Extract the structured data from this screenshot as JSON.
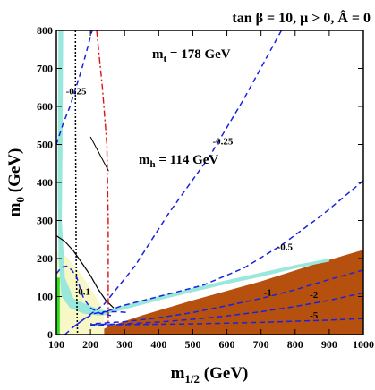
{
  "chart_data": {
    "type": "contour",
    "title": "tan β = 10, μ > 0, Â = 0",
    "xlabel": "m",
    "xlabel_sub": "1/2",
    "xlabel_unit": " (GeV)",
    "ylabel": "m",
    "ylabel_sub": "0",
    "ylabel_unit": " (GeV)",
    "xlim": [
      100,
      1000
    ],
    "ylim": [
      0,
      800
    ],
    "xticks": [
      100,
      200,
      300,
      400,
      500,
      600,
      700,
      800,
      900,
      1000
    ],
    "yticks": [
      0,
      100,
      200,
      300,
      400,
      500,
      600,
      700,
      800
    ],
    "annotations": {
      "mt_text": "m",
      "mt_sub": "t",
      "mt_value": " = 178 GeV",
      "mh_text": "m",
      "mh_sub": "h",
      "mh_value": " = 114 GeV"
    },
    "regions": [
      {
        "name": "stau_lsp",
        "color": "#b5500f",
        "points": [
          [
            210,
            0
          ],
          [
            1000,
            0
          ],
          [
            1000,
            223
          ],
          [
            850,
            183
          ],
          [
            700,
            140
          ],
          [
            500,
            90
          ],
          [
            350,
            50
          ],
          [
            250,
            20
          ],
          [
            210,
            0
          ]
        ]
      },
      {
        "name": "light_yellow",
        "color": "#f7f8c6",
        "points": [
          [
            100,
            0
          ],
          [
            240,
            0
          ],
          [
            240,
            60
          ],
          [
            215,
            100
          ],
          [
            175,
            155
          ],
          [
            130,
            205
          ],
          [
            100,
            220
          ]
        ]
      },
      {
        "name": "green_strip",
        "color": "#2ee01a",
        "points": [
          [
            100,
            0
          ],
          [
            110,
            0
          ],
          [
            110,
            150
          ],
          [
            100,
            150
          ]
        ]
      },
      {
        "name": "cosmology_strip_vertical",
        "color": "#9ae8dc",
        "points": [
          [
            110,
            800
          ],
          [
            120,
            800
          ],
          [
            118,
            500
          ],
          [
            116,
            300
          ],
          [
            125,
            150
          ],
          [
            150,
            95
          ],
          [
            200,
            75
          ],
          [
            230,
            65
          ],
          [
            255,
            62
          ],
          [
            255,
            52
          ],
          [
            225,
            50
          ],
          [
            180,
            55
          ],
          [
            140,
            70
          ],
          [
            115,
            100
          ],
          [
            106,
            200
          ],
          [
            104,
            400
          ],
          [
            106,
            800
          ]
        ]
      },
      {
        "name": "cosmology_strip_diagonal",
        "color": "#9ae8dc",
        "points": [
          [
            240,
            62
          ],
          [
            300,
            77
          ],
          [
            400,
            101
          ],
          [
            500,
            122
          ],
          [
            600,
            143
          ],
          [
            700,
            163
          ],
          [
            800,
            183
          ],
          [
            900,
            200
          ],
          [
            900,
            192
          ],
          [
            800,
            174
          ],
          [
            700,
            152
          ],
          [
            600,
            133
          ],
          [
            500,
            112
          ],
          [
            400,
            90
          ],
          [
            300,
            66
          ],
          [
            240,
            52
          ]
        ]
      }
    ],
    "lines": [
      {
        "name": "chargino_bound",
        "style": "solid-black",
        "points": [
          [
            100,
            260
          ],
          [
            125,
            245
          ],
          [
            150,
            220
          ],
          [
            175,
            188
          ],
          [
            200,
            155
          ],
          [
            222,
            120
          ],
          [
            245,
            90
          ],
          [
            268,
            70
          ]
        ]
      },
      {
        "name": "black_dotted",
        "style": "dotted-black",
        "points": [
          [
            156,
            800
          ],
          [
            156,
            600
          ],
          [
            157,
            400
          ],
          [
            158,
            200
          ],
          [
            162,
            0
          ]
        ]
      },
      {
        "name": "mh_114",
        "style": "dashdot-red",
        "points": [
          [
            218,
            800
          ],
          [
            235,
            650
          ],
          [
            248,
            500
          ],
          [
            252,
            300
          ],
          [
            252,
            100
          ],
          [
            252,
            20
          ]
        ]
      }
    ],
    "contours": [
      {
        "label": "-0.25",
        "label_at": [
          158,
          632
        ],
        "dashed": true,
        "points": [
          [
            100,
            500
          ],
          [
            120,
            555
          ],
          [
            140,
            600
          ],
          [
            175,
            700
          ],
          [
            205,
            800
          ]
        ]
      },
      {
        "label": "-0.25",
        "label_at": [
          588,
          500
        ],
        "dashed": true,
        "points": [
          [
            760,
            800
          ],
          [
            650,
            620
          ],
          [
            550,
            470
          ],
          [
            430,
            320
          ],
          [
            330,
            180
          ],
          [
            240,
            80
          ],
          [
            180,
            40
          ],
          [
            150,
            20
          ]
        ]
      },
      {
        "label": "-0.5",
        "label_at": [
          770,
          222
        ],
        "dashed": true,
        "points": [
          [
            1000,
            405
          ],
          [
            880,
            315
          ],
          [
            760,
            235
          ],
          [
            650,
            175
          ],
          [
            530,
            130
          ],
          [
            400,
            100
          ],
          [
            290,
            75
          ],
          [
            230,
            55
          ]
        ]
      },
      {
        "label": "-1",
        "label_at": [
          720,
          102
        ],
        "dashed": true,
        "points": [
          [
            1000,
            170
          ],
          [
            900,
            145
          ],
          [
            800,
            118
          ],
          [
            700,
            95
          ],
          [
            600,
            76
          ],
          [
            500,
            58
          ],
          [
            400,
            44
          ],
          [
            300,
            34
          ],
          [
            200,
            28
          ]
        ]
      },
      {
        "label": "-2",
        "label_at": [
          855,
          96
        ],
        "dashed": true,
        "points": [
          [
            1000,
            110
          ],
          [
            900,
            90
          ],
          [
            800,
            74
          ],
          [
            700,
            60
          ],
          [
            600,
            49
          ],
          [
            500,
            40
          ],
          [
            400,
            33
          ],
          [
            300,
            28
          ],
          [
            200,
            26
          ]
        ]
      },
      {
        "label": "-5",
        "label_at": [
          855,
          42
        ],
        "dashed": true,
        "points": [
          [
            1000,
            42
          ],
          [
            900,
            38
          ],
          [
            800,
            35
          ],
          [
            700,
            32
          ],
          [
            600,
            30
          ],
          [
            500,
            28
          ],
          [
            400,
            27
          ],
          [
            300,
            26
          ],
          [
            200,
            25
          ]
        ]
      },
      {
        "label": "-0.1",
        "label_at": [
          177,
          105
        ],
        "dashed": true,
        "points": [
          [
            100,
            160
          ],
          [
            115,
            177
          ],
          [
            130,
            180
          ],
          [
            145,
            170
          ],
          [
            160,
            150
          ],
          [
            170,
            120
          ],
          [
            180,
            95
          ],
          [
            200,
            70
          ],
          [
            230,
            55
          ],
          [
            260,
            50
          ]
        ]
      },
      {
        "label": "",
        "label_at": null,
        "dashed": true,
        "points": [
          [
            125,
            0
          ],
          [
            150,
            20
          ],
          [
            180,
            40
          ],
          [
            210,
            55
          ],
          [
            240,
            60
          ],
          [
            280,
            60
          ],
          [
            310,
            58
          ]
        ]
      }
    ],
    "mh_arrow_from": [
      200,
      520
    ],
    "mh_arrow_to": [
      253,
      430
    ],
    "colors": {
      "stau_lsp": "#b5500f",
      "cosmology": "#9ae8dc",
      "light_yellow": "#f7f8c6",
      "green": "#2ee01a",
      "contours": "#1a22dd",
      "mh_line": "#dd1111",
      "frame": "#000000"
    }
  }
}
